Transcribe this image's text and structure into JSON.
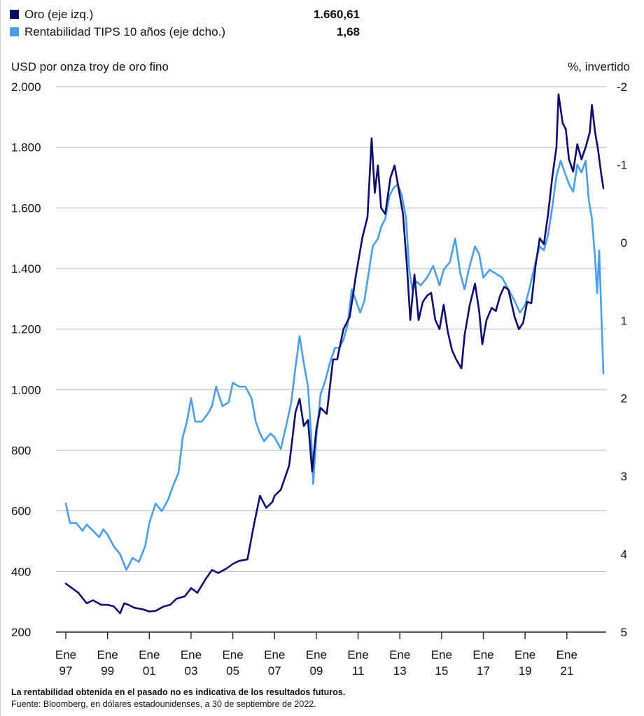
{
  "legend": [
    {
      "name": "Oro (eje izq.)",
      "value": "1.660,61",
      "color": "#0c0b6e"
    },
    {
      "name": "Rentabilidad TIPS 10 años (eje dcho.)",
      "value": "1,68",
      "color": "#4a9de8"
    }
  ],
  "axes": {
    "left_title": "USD por onza troy de oro fino",
    "right_title": "%, invertido"
  },
  "footnotes": {
    "disclaimer": "La rentabilidad obtenida en el pasado no es indicativa de los resultados futuros.",
    "source": "Fuente: Bloomberg, en dólares estadounidenses, a 30 de septiembre de 2022."
  },
  "chart_data": {
    "type": "line",
    "xlim": [
      1997,
      2022.75
    ],
    "x_ticks": [
      {
        "x": 1997,
        "line1": "Ene",
        "line2": "97"
      },
      {
        "x": 1999,
        "line1": "Ene",
        "line2": "99"
      },
      {
        "x": 2001,
        "line1": "Ene",
        "line2": "01"
      },
      {
        "x": 2003,
        "line1": "Ene",
        "line2": "03"
      },
      {
        "x": 2005,
        "line1": "Ene",
        "line2": "05"
      },
      {
        "x": 2007,
        "line1": "Ene",
        "line2": "07"
      },
      {
        "x": 2009,
        "line1": "Ene",
        "line2": "09"
      },
      {
        "x": 2011,
        "line1": "Ene",
        "line2": "11"
      },
      {
        "x": 2013,
        "line1": "Ene",
        "line2": "13"
      },
      {
        "x": 2015,
        "line1": "Ene",
        "line2": "15"
      },
      {
        "x": 2017,
        "line1": "Ene",
        "line2": "17"
      },
      {
        "x": 2019,
        "line1": "Ene",
        "line2": "19"
      },
      {
        "x": 2021,
        "line1": "Ene",
        "line2": "21"
      }
    ],
    "left_axis": {
      "range": [
        200,
        2000
      ],
      "ticks": [
        {
          "v": 2000,
          "label": "2.000"
        },
        {
          "v": 1800,
          "label": "1.800"
        },
        {
          "v": 1600,
          "label": "1.600"
        },
        {
          "v": 1400,
          "label": "1.400"
        },
        {
          "v": 1200,
          "label": "1.200"
        },
        {
          "v": 1000,
          "label": "1.000"
        },
        {
          "v": 800,
          "label": "800"
        },
        {
          "v": 600,
          "label": "600"
        },
        {
          "v": 400,
          "label": "400"
        },
        {
          "v": 200,
          "label": "200"
        }
      ]
    },
    "right_axis": {
      "range": [
        -2,
        5
      ],
      "inverted": true,
      "ticks": [
        {
          "v": -2,
          "label": "-2"
        },
        {
          "v": -1,
          "label": "-1"
        },
        {
          "v": 0,
          "label": "0"
        },
        {
          "v": 1,
          "label": "1"
        },
        {
          "v": 2,
          "label": "2"
        },
        {
          "v": 3,
          "label": "3"
        },
        {
          "v": 4,
          "label": "4"
        },
        {
          "v": 5,
          "label": "5"
        }
      ]
    },
    "grid": "horizontal",
    "series": [
      {
        "name": "Oro (eje izq.)",
        "axis": "left",
        "color": "#0c0b6e",
        "points": [
          [
            1997.0,
            360
          ],
          [
            1997.3,
            345
          ],
          [
            1997.6,
            330
          ],
          [
            1998.0,
            295
          ],
          [
            1998.3,
            305
          ],
          [
            1998.7,
            290
          ],
          [
            1999.0,
            290
          ],
          [
            1999.3,
            285
          ],
          [
            1999.6,
            262
          ],
          [
            1999.8,
            295
          ],
          [
            2000.0,
            290
          ],
          [
            2000.3,
            280
          ],
          [
            2000.7,
            275
          ],
          [
            2001.0,
            268
          ],
          [
            2001.3,
            270
          ],
          [
            2001.7,
            285
          ],
          [
            2002.0,
            290
          ],
          [
            2002.3,
            310
          ],
          [
            2002.7,
            318
          ],
          [
            2003.0,
            345
          ],
          [
            2003.3,
            330
          ],
          [
            2003.7,
            375
          ],
          [
            2004.0,
            405
          ],
          [
            2004.3,
            395
          ],
          [
            2004.7,
            410
          ],
          [
            2005.0,
            425
          ],
          [
            2005.3,
            435
          ],
          [
            2005.7,
            440
          ],
          [
            2006.0,
            550
          ],
          [
            2006.3,
            650
          ],
          [
            2006.6,
            610
          ],
          [
            2006.9,
            630
          ],
          [
            2007.0,
            650
          ],
          [
            2007.3,
            670
          ],
          [
            2007.7,
            750
          ],
          [
            2008.0,
            925
          ],
          [
            2008.2,
            970
          ],
          [
            2008.4,
            880
          ],
          [
            2008.6,
            900
          ],
          [
            2008.8,
            730
          ],
          [
            2009.0,
            870
          ],
          [
            2009.2,
            940
          ],
          [
            2009.5,
            920
          ],
          [
            2009.8,
            1100
          ],
          [
            2010.0,
            1100
          ],
          [
            2010.3,
            1200
          ],
          [
            2010.6,
            1240
          ],
          [
            2010.9,
            1380
          ],
          [
            2011.0,
            1420
          ],
          [
            2011.2,
            1500
          ],
          [
            2011.45,
            1570
          ],
          [
            2011.65,
            1830
          ],
          [
            2011.8,
            1650
          ],
          [
            2011.95,
            1740
          ],
          [
            2012.1,
            1600
          ],
          [
            2012.3,
            1580
          ],
          [
            2012.55,
            1700
          ],
          [
            2012.75,
            1740
          ],
          [
            2012.95,
            1660
          ],
          [
            2013.15,
            1580
          ],
          [
            2013.35,
            1400
          ],
          [
            2013.5,
            1230
          ],
          [
            2013.7,
            1380
          ],
          [
            2013.9,
            1230
          ],
          [
            2014.1,
            1290
          ],
          [
            2014.3,
            1310
          ],
          [
            2014.5,
            1320
          ],
          [
            2014.7,
            1230
          ],
          [
            2014.9,
            1200
          ],
          [
            2015.1,
            1280
          ],
          [
            2015.3,
            1190
          ],
          [
            2015.5,
            1130
          ],
          [
            2015.7,
            1100
          ],
          [
            2015.95,
            1070
          ],
          [
            2016.1,
            1180
          ],
          [
            2016.35,
            1280
          ],
          [
            2016.6,
            1350
          ],
          [
            2016.8,
            1260
          ],
          [
            2016.95,
            1150
          ],
          [
            2017.15,
            1230
          ],
          [
            2017.4,
            1270
          ],
          [
            2017.6,
            1260
          ],
          [
            2017.8,
            1310
          ],
          [
            2018.0,
            1340
          ],
          [
            2018.2,
            1330
          ],
          [
            2018.5,
            1240
          ],
          [
            2018.7,
            1200
          ],
          [
            2018.9,
            1220
          ],
          [
            2019.1,
            1290
          ],
          [
            2019.3,
            1285
          ],
          [
            2019.5,
            1410
          ],
          [
            2019.7,
            1500
          ],
          [
            2019.9,
            1480
          ],
          [
            2020.1,
            1580
          ],
          [
            2020.3,
            1700
          ],
          [
            2020.5,
            1800
          ],
          [
            2020.6,
            1975
          ],
          [
            2020.8,
            1880
          ],
          [
            2020.95,
            1860
          ],
          [
            2021.1,
            1760
          ],
          [
            2021.3,
            1720
          ],
          [
            2021.5,
            1810
          ],
          [
            2021.7,
            1760
          ],
          [
            2021.9,
            1800
          ],
          [
            2022.1,
            1850
          ],
          [
            2022.2,
            1940
          ],
          [
            2022.35,
            1850
          ],
          [
            2022.5,
            1790
          ],
          [
            2022.65,
            1710
          ],
          [
            2022.75,
            1665
          ]
        ]
      },
      {
        "name": "Rentabilidad TIPS 10 años (eje dcho.)",
        "axis": "right",
        "color": "#4a9de8",
        "points": [
          [
            1997.0,
            3.35
          ],
          [
            1997.2,
            3.6
          ],
          [
            1997.5,
            3.6
          ],
          [
            1997.8,
            3.7
          ],
          [
            1998.0,
            3.62
          ],
          [
            1998.3,
            3.7
          ],
          [
            1998.6,
            3.78
          ],
          [
            1998.8,
            3.68
          ],
          [
            1999.0,
            3.75
          ],
          [
            1999.3,
            3.9
          ],
          [
            1999.6,
            4.0
          ],
          [
            1999.9,
            4.2
          ],
          [
            2000.2,
            4.05
          ],
          [
            2000.5,
            4.1
          ],
          [
            2000.8,
            3.9
          ],
          [
            2001.0,
            3.6
          ],
          [
            2001.3,
            3.35
          ],
          [
            2001.6,
            3.45
          ],
          [
            2001.9,
            3.3
          ],
          [
            2002.1,
            3.15
          ],
          [
            2002.4,
            2.95
          ],
          [
            2002.6,
            2.5
          ],
          [
            2002.8,
            2.3
          ],
          [
            2003.0,
            2.0
          ],
          [
            2003.2,
            2.3
          ],
          [
            2003.5,
            2.3
          ],
          [
            2003.8,
            2.2
          ],
          [
            2004.0,
            2.1
          ],
          [
            2004.2,
            1.85
          ],
          [
            2004.5,
            2.1
          ],
          [
            2004.8,
            2.05
          ],
          [
            2005.0,
            1.8
          ],
          [
            2005.3,
            1.85
          ],
          [
            2005.6,
            1.85
          ],
          [
            2005.9,
            2.0
          ],
          [
            2006.1,
            2.3
          ],
          [
            2006.3,
            2.45
          ],
          [
            2006.5,
            2.55
          ],
          [
            2006.8,
            2.45
          ],
          [
            2007.0,
            2.5
          ],
          [
            2007.3,
            2.65
          ],
          [
            2007.6,
            2.3
          ],
          [
            2007.8,
            2.05
          ],
          [
            2008.0,
            1.6
          ],
          [
            2008.2,
            1.2
          ],
          [
            2008.4,
            1.55
          ],
          [
            2008.6,
            1.85
          ],
          [
            2008.75,
            2.45
          ],
          [
            2008.85,
            3.1
          ],
          [
            2009.0,
            2.5
          ],
          [
            2009.2,
            1.95
          ],
          [
            2009.4,
            1.8
          ],
          [
            2009.7,
            1.5
          ],
          [
            2009.9,
            1.35
          ],
          [
            2010.1,
            1.35
          ],
          [
            2010.3,
            1.25
          ],
          [
            2010.5,
            1.05
          ],
          [
            2010.7,
            0.6
          ],
          [
            2010.9,
            0.75
          ],
          [
            2011.1,
            0.9
          ],
          [
            2011.3,
            0.75
          ],
          [
            2011.5,
            0.4
          ],
          [
            2011.7,
            0.05
          ],
          [
            2011.95,
            -0.05
          ],
          [
            2012.1,
            -0.2
          ],
          [
            2012.3,
            -0.3
          ],
          [
            2012.5,
            -0.6
          ],
          [
            2012.7,
            -0.7
          ],
          [
            2012.9,
            -0.75
          ],
          [
            2013.1,
            -0.6
          ],
          [
            2013.3,
            -0.3
          ],
          [
            2013.45,
            0.35
          ],
          [
            2013.6,
            0.6
          ],
          [
            2013.8,
            0.5
          ],
          [
            2014.0,
            0.55
          ],
          [
            2014.3,
            0.45
          ],
          [
            2014.6,
            0.3
          ],
          [
            2014.9,
            0.55
          ],
          [
            2015.1,
            0.35
          ],
          [
            2015.4,
            0.25
          ],
          [
            2015.65,
            -0.05
          ],
          [
            2015.9,
            0.4
          ],
          [
            2016.1,
            0.6
          ],
          [
            2016.3,
            0.35
          ],
          [
            2016.6,
            0.05
          ],
          [
            2016.8,
            0.15
          ],
          [
            2017.0,
            0.45
          ],
          [
            2017.3,
            0.35
          ],
          [
            2017.6,
            0.4
          ],
          [
            2017.9,
            0.45
          ],
          [
            2018.2,
            0.6
          ],
          [
            2018.5,
            0.75
          ],
          [
            2018.75,
            0.9
          ],
          [
            2019.0,
            0.8
          ],
          [
            2019.2,
            0.6
          ],
          [
            2019.5,
            0.25
          ],
          [
            2019.7,
            0.05
          ],
          [
            2019.9,
            0.1
          ],
          [
            2020.1,
            -0.1
          ],
          [
            2020.3,
            -0.45
          ],
          [
            2020.5,
            -0.85
          ],
          [
            2020.7,
            -1.05
          ],
          [
            2020.9,
            -0.9
          ],
          [
            2021.1,
            -0.75
          ],
          [
            2021.3,
            -0.65
          ],
          [
            2021.5,
            -1.0
          ],
          [
            2021.7,
            -0.9
          ],
          [
            2021.9,
            -1.05
          ],
          [
            2022.05,
            -0.55
          ],
          [
            2022.2,
            -0.3
          ],
          [
            2022.35,
            0.2
          ],
          [
            2022.45,
            0.65
          ],
          [
            2022.55,
            0.1
          ],
          [
            2022.65,
            0.9
          ],
          [
            2022.75,
            1.68
          ]
        ]
      }
    ]
  }
}
